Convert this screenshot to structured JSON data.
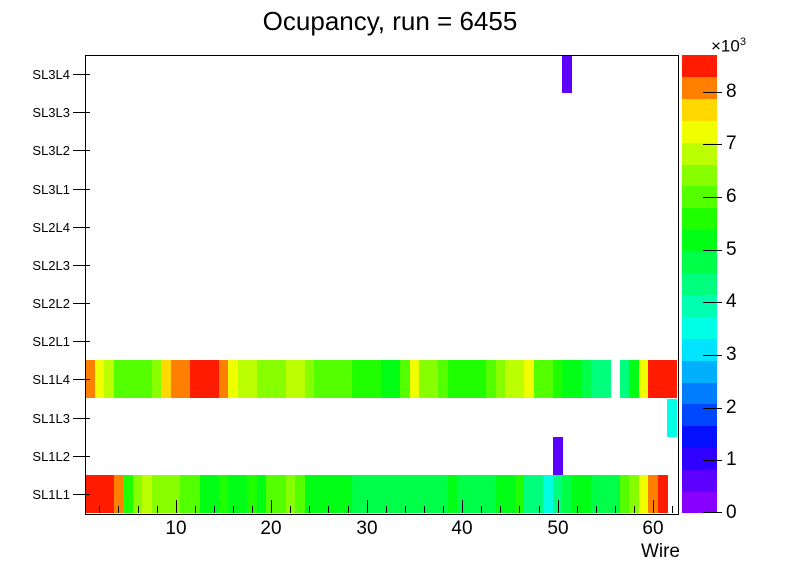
{
  "title": "Ocupancy, run = 6455",
  "chart_data": {
    "type": "heatmap",
    "title": "Ocupancy, run = 6455",
    "xlabel": "Wire",
    "x_range": [
      0.5,
      62.5
    ],
    "n_wires": 62,
    "x_ticks": [
      10,
      20,
      30,
      40,
      50,
      60
    ],
    "x_minor_tick_step": 2,
    "rows_bottom_to_top": [
      "SL1L1",
      "SL1L2",
      "SL1L3",
      "SL1L4",
      "SL2L1",
      "SL2L2",
      "SL2L3",
      "SL2L4",
      "SL3L1",
      "SL3L2",
      "SL3L3",
      "SL3L4"
    ],
    "zmin": 0,
    "zmax": 8700,
    "z_ticks": [
      0,
      1,
      2,
      3,
      4,
      5,
      6,
      7,
      8
    ],
    "z_tick_unit": 1000,
    "z_scale_label": "×10",
    "z_scale_exponent": "3",
    "grid": false,
    "legend_position": "right-colorbar",
    "palette": [
      "#8800ff",
      "#5c00ff",
      "#3000ff",
      "#0410ff",
      "#0048ff",
      "#007cff",
      "#00b0ff",
      "#00e4ff",
      "#00ffe4",
      "#00ffb0",
      "#00ff7c",
      "#00ff48",
      "#00ff14",
      "#20ff00",
      "#54ff00",
      "#88ff00",
      "#bcff00",
      "#f0ff00",
      "#ffd800",
      "#ff8000",
      "#ff1c00"
    ],
    "values": {
      "SL1L1": [
        8600,
        8550,
        8500,
        8100,
        5600,
        6300,
        6900,
        6300,
        6250,
        6300,
        5900,
        5900,
        5300,
        5250,
        5550,
        5200,
        5150,
        5700,
        5250,
        5900,
        5850,
        6300,
        5900,
        5200,
        5100,
        5150,
        5050,
        5100,
        4900,
        4800,
        4700,
        4800,
        4700,
        4800,
        4700,
        4800,
        4700,
        4800,
        5100,
        4700,
        4800,
        4700,
        4800,
        5100,
        5200,
        5700,
        4350,
        4300,
        3500,
        4300,
        4700,
        5100,
        5200,
        4800,
        4700,
        4800,
        6000,
        6400,
        7250,
        8100,
        8500,
        0
      ],
      "SL1L2": {
        "50": 620
      },
      "SL1L3": {
        "62": 3500
      },
      "SL1L4": [
        8100,
        7250,
        6840,
        6000,
        6000,
        6000,
        6000,
        6420,
        7660,
        8080,
        8100,
        8500,
        8500,
        8450,
        8050,
        7250,
        6840,
        6840,
        6420,
        6420,
        6420,
        6840,
        6840,
        6420,
        6100,
        6100,
        6100,
        6100,
        5700,
        5700,
        5700,
        5180,
        5180,
        6000,
        7250,
        6420,
        6420,
        6000,
        5700,
        5600,
        5700,
        5600,
        6000,
        6400,
        6840,
        6840,
        7250,
        6000,
        6000,
        5600,
        5180,
        5100,
        4760,
        4350,
        4350,
        0,
        4400,
        5180,
        7250,
        8450,
        8500,
        8500
      ],
      "SL3L4": {
        "51": 620
      }
    }
  }
}
